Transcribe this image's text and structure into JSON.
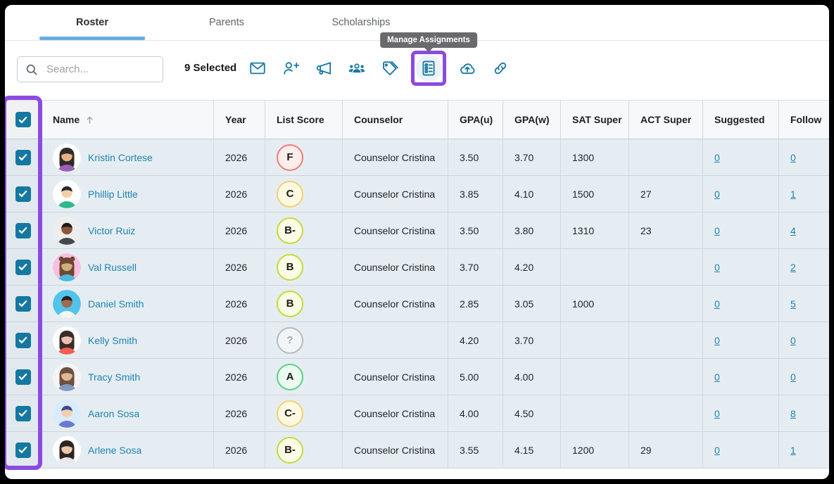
{
  "tabs": [
    {
      "label": "Roster",
      "active": true
    },
    {
      "label": "Parents",
      "active": false
    },
    {
      "label": "Scholarships",
      "active": false
    }
  ],
  "toolbar": {
    "search_placeholder": "Search...",
    "selected_text": "9 Selected",
    "tooltip_text": "Manage Assignments",
    "icon_color": "#1579a2",
    "highlight_color": "#8c4ae3",
    "icons": [
      {
        "name": "email-icon",
        "highlighted": false
      },
      {
        "name": "add-student-icon",
        "highlighted": false
      },
      {
        "name": "announcement-icon",
        "highlighted": false
      },
      {
        "name": "group-icon",
        "highlighted": false
      },
      {
        "name": "tags-icon",
        "highlighted": false
      },
      {
        "name": "manage-assignments-icon",
        "highlighted": true
      },
      {
        "name": "upload-icon",
        "highlighted": false
      },
      {
        "name": "link-icon",
        "highlighted": false
      }
    ]
  },
  "table": {
    "columns": [
      "Name",
      "Year",
      "List Score",
      "Counselor",
      "GPA(u)",
      "GPA(w)",
      "SAT Super",
      "ACT Super",
      "Suggested",
      "Follow"
    ],
    "sort_column": "Name",
    "sort_direction": "asc",
    "select_all_checked": true,
    "rows": [
      {
        "selected": true,
        "name": "Kristin Cortese",
        "year": "2026",
        "list_score": "F",
        "score_color": "red",
        "counselor": "Counselor Cristina",
        "gpa_u": "3.50",
        "gpa_w": "3.70",
        "sat_super": "1300",
        "act_super": "",
        "suggested": "0",
        "follow": "0",
        "avatar": {
          "style": "long",
          "bg": "#ffffff",
          "hair": "#2f2a2e",
          "skin": "#e9b184",
          "shirt": "#9c5fb5"
        }
      },
      {
        "selected": true,
        "name": "Phillip Little",
        "year": "2026",
        "list_score": "C",
        "score_color": "yellow",
        "counselor": "Counselor Cristina",
        "gpa_u": "3.85",
        "gpa_w": "4.10",
        "sat_super": "1500",
        "act_super": "27",
        "suggested": "0",
        "follow": "1",
        "avatar": {
          "style": "short",
          "bg": "#ffffff",
          "hair": "#2a2731",
          "skin": "#f4cfa7",
          "shirt": "#2eb98c"
        }
      },
      {
        "selected": true,
        "name": "Victor Ruiz",
        "year": "2026",
        "list_score": "B-",
        "score_color": "lime",
        "counselor": "Counselor Cristina",
        "gpa_u": "3.50",
        "gpa_w": "3.80",
        "sat_super": "1310",
        "act_super": "23",
        "suggested": "0",
        "follow": "4",
        "avatar": {
          "style": "short",
          "bg": "#ededed",
          "hair": "#201a16",
          "skin": "#8a573a",
          "shirt": "#45494c"
        }
      },
      {
        "selected": true,
        "name": "Val Russell",
        "year": "2026",
        "list_score": "B",
        "score_color": "lime",
        "counselor": "Counselor Cristina",
        "gpa_u": "3.70",
        "gpa_w": "4.20",
        "sat_super": "",
        "act_super": "",
        "suggested": "0",
        "follow": "2",
        "avatar": {
          "style": "buns",
          "bg": "#f9bfe1",
          "hair": "#6f4731",
          "skin": "#cdb07e",
          "shirt": "#49b9dc"
        }
      },
      {
        "selected": true,
        "name": "Daniel Smith",
        "year": "2026",
        "list_score": "B",
        "score_color": "lime",
        "counselor": "Counselor Cristina",
        "gpa_u": "2.85",
        "gpa_w": "3.05",
        "sat_super": "1000",
        "act_super": "",
        "suggested": "0",
        "follow": "5",
        "avatar": {
          "style": "short",
          "bg": "#52c3ea",
          "hair": "#26211e",
          "skin": "#9c6c4b",
          "shirt": "#f4f4f2"
        }
      },
      {
        "selected": true,
        "name": "Kelly Smith",
        "year": "2026",
        "list_score": "?",
        "score_color": "gray",
        "counselor": "",
        "gpa_u": "4.20",
        "gpa_w": "3.70",
        "sat_super": "",
        "act_super": "",
        "suggested": "0",
        "follow": "0",
        "avatar": {
          "style": "long",
          "bg": "#ffffff",
          "hair": "#3c2b27",
          "skin": "#e8c3b3",
          "shirt": "#f05f52"
        }
      },
      {
        "selected": true,
        "name": "Tracy Smith",
        "year": "2026",
        "list_score": "A",
        "score_color": "green",
        "counselor": "Counselor Cristina",
        "gpa_u": "5.00",
        "gpa_w": "4.00",
        "sat_super": "",
        "act_super": "",
        "suggested": "0",
        "follow": "0",
        "avatar": {
          "style": "long",
          "bg": "#f4f4f4",
          "hair": "#6b5140",
          "skin": "#e3b795",
          "shirt": "#8099bd"
        }
      },
      {
        "selected": true,
        "name": "Aaron Sosa",
        "year": "2026",
        "list_score": "C-",
        "score_color": "yellow",
        "counselor": "Counselor Cristina",
        "gpa_u": "4.00",
        "gpa_w": "4.50",
        "sat_super": "",
        "act_super": "",
        "suggested": "0",
        "follow": "8",
        "avatar": {
          "style": "short",
          "bg": "#d9ecfb",
          "hair": "#3c4897",
          "skin": "#f3cfad",
          "shirt": "#6b79d3"
        }
      },
      {
        "selected": true,
        "name": "Arlene Sosa",
        "year": "2026",
        "list_score": "B-",
        "score_color": "lime",
        "counselor": "Counselor Cristina",
        "gpa_u": "3.55",
        "gpa_w": "4.15",
        "sat_super": "1200",
        "act_super": "29",
        "suggested": "0",
        "follow": "1",
        "avatar": {
          "style": "long",
          "bg": "#ffffff",
          "hair": "#2c2522",
          "skin": "#eec7a9",
          "shirt": "#e9e9ec"
        }
      }
    ]
  },
  "score_colors": {
    "red": {
      "border": "#ee7d73",
      "bg": "#fdeeec",
      "text": "#1b1b1b"
    },
    "yellow": {
      "border": "#f0d36e",
      "bg": "#fdf8e2",
      "text": "#1b1b1b"
    },
    "lime": {
      "border": "#c3da3b",
      "bg": "#fafce6",
      "text": "#1b1b1b"
    },
    "green": {
      "border": "#57d186",
      "bg": "#edfaf1",
      "text": "#1b1b1b"
    },
    "gray": {
      "border": "#b4bbc1",
      "bg": "#f2f5f7",
      "text": "#a0a7ad"
    }
  }
}
